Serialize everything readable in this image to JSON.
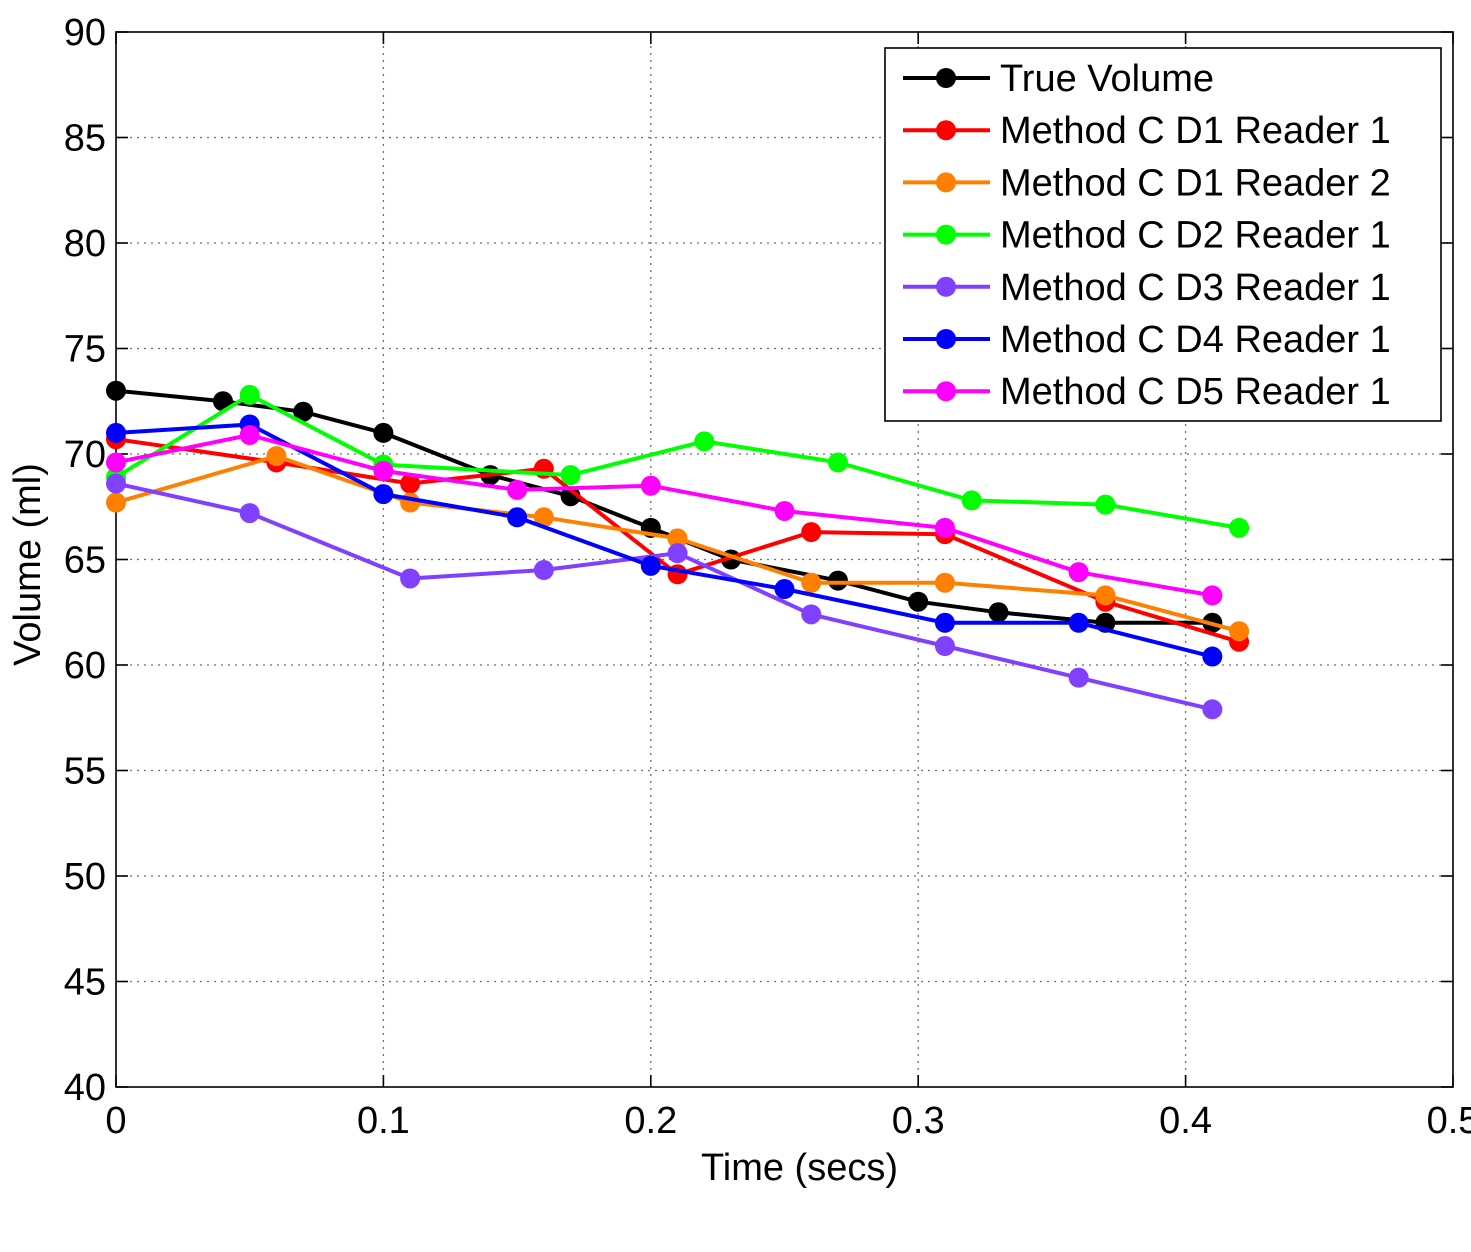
{
  "chart_data": {
    "type": "line",
    "title": "",
    "xlabel": "Time (secs)",
    "ylabel": "Volume (ml)",
    "xlim": [
      0,
      0.5
    ],
    "ylim": [
      40,
      90
    ],
    "xticks": [
      0,
      0.1,
      0.2,
      0.3,
      0.4,
      0.5
    ],
    "xtick_labels": [
      "0",
      "0.1",
      "0.2",
      "0.3",
      "0.4",
      "0.5"
    ],
    "yticks": [
      40,
      45,
      50,
      55,
      60,
      65,
      70,
      75,
      80,
      85,
      90
    ],
    "ytick_labels": [
      "40",
      "45",
      "50",
      "55",
      "60",
      "65",
      "70",
      "75",
      "80",
      "85",
      "90"
    ],
    "grid": true,
    "legend_position": "top-right",
    "series": [
      {
        "name": "True Volume",
        "color": "#000000",
        "x": [
          0,
          0.04,
          0.07,
          0.1,
          0.14,
          0.17,
          0.2,
          0.23,
          0.27,
          0.3,
          0.33,
          0.37,
          0.41
        ],
        "y": [
          73.0,
          72.5,
          72.0,
          71.0,
          69.0,
          68.0,
          66.5,
          65.0,
          64.0,
          63.0,
          62.5,
          62.0,
          62.0
        ]
      },
      {
        "name": "Method C D1 Reader 1",
        "color": "#ff0000",
        "x": [
          0,
          0.06,
          0.11,
          0.16,
          0.21,
          0.26,
          0.31,
          0.37,
          0.42
        ],
        "y": [
          70.7,
          69.6,
          68.6,
          69.3,
          64.3,
          66.3,
          66.2,
          63.0,
          61.1
        ]
      },
      {
        "name": "Method C D1 Reader 2",
        "color": "#ff8000",
        "x": [
          0,
          0.06,
          0.11,
          0.16,
          0.21,
          0.26,
          0.31,
          0.37,
          0.42
        ],
        "y": [
          67.7,
          69.9,
          67.7,
          67.0,
          66.0,
          63.9,
          63.9,
          63.3,
          61.6
        ]
      },
      {
        "name": "Method C D2 Reader 1",
        "color": "#00ff00",
        "x": [
          0,
          0.05,
          0.1,
          0.17,
          0.22,
          0.27,
          0.32,
          0.37,
          0.42
        ],
        "y": [
          68.9,
          72.8,
          69.5,
          69.0,
          70.6,
          69.6,
          67.8,
          67.6,
          66.5
        ]
      },
      {
        "name": "Method C D3 Reader 1",
        "color": "#8040ff",
        "x": [
          0,
          0.05,
          0.11,
          0.16,
          0.21,
          0.26,
          0.31,
          0.36,
          0.41
        ],
        "y": [
          68.6,
          67.2,
          64.1,
          64.5,
          65.3,
          62.4,
          60.9,
          59.4,
          57.9
        ]
      },
      {
        "name": "Method C D4 Reader 1",
        "color": "#0000ff",
        "x": [
          0,
          0.05,
          0.1,
          0.15,
          0.2,
          0.25,
          0.31,
          0.36,
          0.41
        ],
        "y": [
          71.0,
          71.4,
          68.1,
          67.0,
          64.7,
          63.6,
          62.0,
          62.0,
          60.4
        ]
      },
      {
        "name": "Method C D5 Reader 1",
        "color": "#ff00ff",
        "x": [
          0,
          0.05,
          0.1,
          0.15,
          0.2,
          0.25,
          0.31,
          0.36,
          0.41
        ],
        "y": [
          69.6,
          70.9,
          69.2,
          68.3,
          68.5,
          67.3,
          66.5,
          64.4,
          63.3
        ]
      }
    ]
  }
}
